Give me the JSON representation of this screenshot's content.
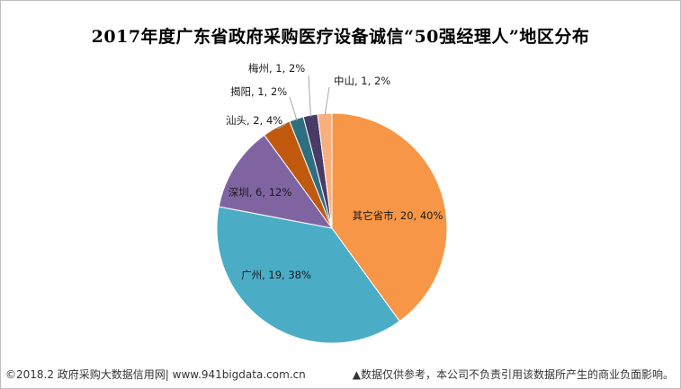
{
  "chart_data": {
    "type": "pie",
    "title": "2017年度广东省政府采购医疗设备诚信“50强经理人”地区分布",
    "slices": [
      {
        "name": "其它省市",
        "value": 20,
        "pct": "40%",
        "color": "#F79646"
      },
      {
        "name": "广州",
        "value": 19,
        "pct": "38%",
        "color": "#4BACC6"
      },
      {
        "name": "深圳",
        "value": 6,
        "pct": "12%",
        "color": "#8064A2"
      },
      {
        "name": "汕头",
        "value": 2,
        "pct": "4%",
        "color": "#C0590E"
      },
      {
        "name": "揭阳",
        "value": 1,
        "pct": "2%",
        "color": "#2D6E80"
      },
      {
        "name": "梅州",
        "value": 1,
        "pct": "2%",
        "color": "#4A3A66"
      },
      {
        "name": "中山",
        "value": 1,
        "pct": "2%",
        "color": "#FAB07E"
      }
    ]
  },
  "footer": {
    "left": "©2018.2 政府采购大数据信用网| www.941bigdata.com.cn",
    "right": "▲数据仅供参考，本公司不负责引用该数据所产生的商业负面影响。"
  }
}
